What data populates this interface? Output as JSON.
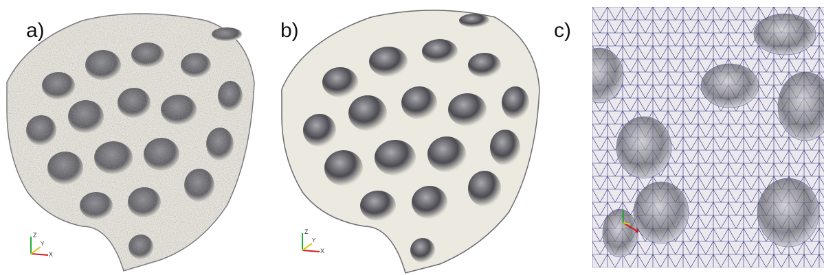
{
  "panels": [
    {
      "label": "a)",
      "description": "voxelized porous foam surface, rough"
    },
    {
      "label": "b)",
      "description": "smoothed porous foam surface"
    },
    {
      "label": "c)",
      "description": "close-up tetrahedral mesh of pore surface"
    }
  ],
  "axes_triad": {
    "z": "Z",
    "y": "Y",
    "x": "X"
  },
  "colors": {
    "surface": "#e9e6dd",
    "shadow": "#5b5b60",
    "mesh_line": "#2a2f7a",
    "mesh_fill": "#ebe8ee",
    "axis_x": "#d11f1f",
    "axis_y": "#e0c81a",
    "axis_z": "#1fae2f"
  }
}
